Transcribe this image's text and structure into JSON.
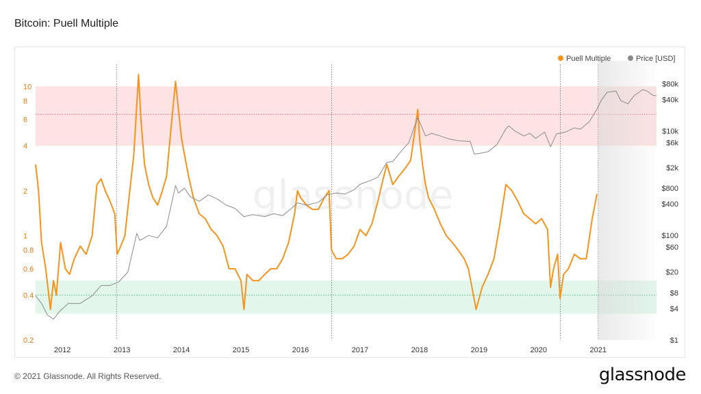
{
  "page": {
    "title": "Bitcoin: Puell Multiple"
  },
  "footer": {
    "copyright": "© 2021 Glassnode. All Rights Reserved.",
    "brand": "glassnode"
  },
  "watermark": "glassnode",
  "colors": {
    "puell": "#f7931a",
    "price": "#8a8a8a",
    "top_band": "#fde3e3",
    "bottom_band": "#e2f6ec",
    "top_line": "#e0607a",
    "bottom_line": "#55b58a",
    "left_axis": "#e07a10"
  },
  "chart_data": {
    "type": "line",
    "title": "Bitcoin: Puell Multiple",
    "legend": {
      "placement": "top-right",
      "entries": [
        "Puell Multiple",
        "Price [USD]"
      ]
    },
    "x_ticks": [
      "2012",
      "2013",
      "2014",
      "2015",
      "2016",
      "2017",
      "2018",
      "2019",
      "2020",
      "2021"
    ],
    "x_range": [
      2011.55,
      2021.98
    ],
    "y_left": {
      "scale": "log",
      "range": [
        0.2,
        12
      ],
      "ticks": [
        "0.2",
        "0.4",
        "0.6",
        "0.8",
        "1",
        "2",
        "4",
        "6",
        "8",
        "10"
      ]
    },
    "y_right": {
      "scale": "log",
      "range": [
        1,
        120000
      ],
      "ticks": [
        "$1",
        "$4",
        "$8",
        "$20",
        "$60",
        "$100",
        "$400",
        "$800",
        "$2k",
        "$6k",
        "$10k",
        "$40k",
        "$80k"
      ]
    },
    "bands": [
      {
        "name": "top",
        "from": 4,
        "to": 10,
        "line": 6.5
      },
      {
        "name": "bottom",
        "from": 0.3,
        "to": 0.5,
        "line": 0.4
      }
    ],
    "halvings": [
      "2012-11-28",
      "2016-07-09",
      "2020-05-11"
    ],
    "projection_start": 2021.0,
    "series": [
      {
        "name": "Puell Multiple",
        "axis": "left",
        "points": [
          [
            2011.55,
            3.0
          ],
          [
            2011.6,
            2.0
          ],
          [
            2011.65,
            0.9
          ],
          [
            2011.72,
            0.6
          ],
          [
            2011.8,
            0.32
          ],
          [
            2011.85,
            0.5
          ],
          [
            2011.9,
            0.4
          ],
          [
            2011.97,
            0.9
          ],
          [
            2012.05,
            0.6
          ],
          [
            2012.12,
            0.55
          ],
          [
            2012.2,
            0.7
          ],
          [
            2012.3,
            0.85
          ],
          [
            2012.4,
            0.75
          ],
          [
            2012.5,
            1.0
          ],
          [
            2012.58,
            2.2
          ],
          [
            2012.65,
            2.4
          ],
          [
            2012.72,
            2.0
          ],
          [
            2012.8,
            1.7
          ],
          [
            2012.88,
            1.4
          ],
          [
            2012.92,
            0.75
          ],
          [
            2012.98,
            0.85
          ],
          [
            2013.05,
            1.0
          ],
          [
            2013.12,
            1.8
          ],
          [
            2013.2,
            3.5
          ],
          [
            2013.28,
            12.0
          ],
          [
            2013.32,
            6.0
          ],
          [
            2013.38,
            3.0
          ],
          [
            2013.45,
            2.2
          ],
          [
            2013.52,
            1.8
          ],
          [
            2013.6,
            1.6
          ],
          [
            2013.68,
            2.0
          ],
          [
            2013.75,
            2.5
          ],
          [
            2013.82,
            5.0
          ],
          [
            2013.9,
            10.8
          ],
          [
            2013.95,
            7.0
          ],
          [
            2014.0,
            4.5
          ],
          [
            2014.05,
            3.5
          ],
          [
            2014.12,
            2.5
          ],
          [
            2014.2,
            1.8
          ],
          [
            2014.3,
            1.4
          ],
          [
            2014.4,
            1.3
          ],
          [
            2014.5,
            1.1
          ],
          [
            2014.6,
            1.0
          ],
          [
            2014.7,
            0.85
          ],
          [
            2014.8,
            0.6
          ],
          [
            2014.9,
            0.6
          ],
          [
            2015.0,
            0.5
          ],
          [
            2015.05,
            0.32
          ],
          [
            2015.1,
            0.55
          ],
          [
            2015.2,
            0.5
          ],
          [
            2015.3,
            0.5
          ],
          [
            2015.4,
            0.55
          ],
          [
            2015.5,
            0.6
          ],
          [
            2015.6,
            0.6
          ],
          [
            2015.7,
            0.7
          ],
          [
            2015.8,
            0.9
          ],
          [
            2015.9,
            1.4
          ],
          [
            2015.95,
            2.0
          ],
          [
            2016.0,
            1.8
          ],
          [
            2016.1,
            1.6
          ],
          [
            2016.2,
            1.5
          ],
          [
            2016.3,
            1.5
          ],
          [
            2016.4,
            1.8
          ],
          [
            2016.48,
            2.0
          ],
          [
            2016.52,
            0.8
          ],
          [
            2016.6,
            0.7
          ],
          [
            2016.7,
            0.7
          ],
          [
            2016.8,
            0.75
          ],
          [
            2016.9,
            0.85
          ],
          [
            2017.0,
            1.1
          ],
          [
            2017.1,
            1.0
          ],
          [
            2017.2,
            1.2
          ],
          [
            2017.3,
            1.7
          ],
          [
            2017.4,
            2.5
          ],
          [
            2017.45,
            3.0
          ],
          [
            2017.55,
            2.2
          ],
          [
            2017.65,
            2.5
          ],
          [
            2017.75,
            2.8
          ],
          [
            2017.85,
            3.2
          ],
          [
            2017.92,
            5.0
          ],
          [
            2017.97,
            7.0
          ],
          [
            2018.0,
            4.5
          ],
          [
            2018.05,
            3.0
          ],
          [
            2018.1,
            2.2
          ],
          [
            2018.15,
            1.8
          ],
          [
            2018.25,
            1.5
          ],
          [
            2018.35,
            1.2
          ],
          [
            2018.45,
            1.0
          ],
          [
            2018.55,
            0.9
          ],
          [
            2018.65,
            0.8
          ],
          [
            2018.75,
            0.7
          ],
          [
            2018.82,
            0.6
          ],
          [
            2018.88,
            0.45
          ],
          [
            2018.95,
            0.32
          ],
          [
            2019.05,
            0.45
          ],
          [
            2019.15,
            0.55
          ],
          [
            2019.25,
            0.7
          ],
          [
            2019.35,
            1.2
          ],
          [
            2019.45,
            2.2
          ],
          [
            2019.5,
            2.1
          ],
          [
            2019.55,
            2.0
          ],
          [
            2019.65,
            1.7
          ],
          [
            2019.75,
            1.4
          ],
          [
            2019.85,
            1.3
          ],
          [
            2019.95,
            1.2
          ],
          [
            2020.05,
            1.3
          ],
          [
            2020.15,
            1.1
          ],
          [
            2020.2,
            0.45
          ],
          [
            2020.25,
            0.6
          ],
          [
            2020.32,
            0.75
          ],
          [
            2020.36,
            0.38
          ],
          [
            2020.42,
            0.55
          ],
          [
            2020.5,
            0.6
          ],
          [
            2020.6,
            0.75
          ],
          [
            2020.7,
            0.7
          ],
          [
            2020.8,
            0.7
          ],
          [
            2020.9,
            1.3
          ],
          [
            2020.98,
            1.9
          ]
        ]
      },
      {
        "name": "Price [USD]",
        "axis": "right",
        "points": [
          [
            2011.55,
            7
          ],
          [
            2011.65,
            5
          ],
          [
            2011.75,
            3
          ],
          [
            2011.85,
            2.5
          ],
          [
            2011.95,
            3.5
          ],
          [
            2012.1,
            5
          ],
          [
            2012.3,
            5
          ],
          [
            2012.5,
            7
          ],
          [
            2012.65,
            11
          ],
          [
            2012.8,
            11
          ],
          [
            2012.95,
            13
          ],
          [
            2013.1,
            20
          ],
          [
            2013.25,
            110
          ],
          [
            2013.3,
            80
          ],
          [
            2013.45,
            100
          ],
          [
            2013.6,
            90
          ],
          [
            2013.75,
            150
          ],
          [
            2013.9,
            900
          ],
          [
            2013.95,
            650
          ],
          [
            2014.05,
            800
          ],
          [
            2014.15,
            550
          ],
          [
            2014.3,
            450
          ],
          [
            2014.45,
            600
          ],
          [
            2014.6,
            500
          ],
          [
            2014.75,
            380
          ],
          [
            2014.9,
            330
          ],
          [
            2015.05,
            230
          ],
          [
            2015.2,
            250
          ],
          [
            2015.4,
            230
          ],
          [
            2015.55,
            260
          ],
          [
            2015.7,
            240
          ],
          [
            2015.85,
            330
          ],
          [
            2015.95,
            420
          ],
          [
            2016.1,
            380
          ],
          [
            2016.3,
            430
          ],
          [
            2016.45,
            600
          ],
          [
            2016.6,
            650
          ],
          [
            2016.75,
            620
          ],
          [
            2016.9,
            750
          ],
          [
            2017.0,
            950
          ],
          [
            2017.15,
            1100
          ],
          [
            2017.3,
            1300
          ],
          [
            2017.45,
            2500
          ],
          [
            2017.55,
            2600
          ],
          [
            2017.7,
            4200
          ],
          [
            2017.82,
            6000
          ],
          [
            2017.9,
            11000
          ],
          [
            2017.97,
            18000
          ],
          [
            2018.05,
            11000
          ],
          [
            2018.1,
            8000
          ],
          [
            2018.2,
            9000
          ],
          [
            2018.35,
            8000
          ],
          [
            2018.5,
            7000
          ],
          [
            2018.65,
            6500
          ],
          [
            2018.85,
            6300
          ],
          [
            2018.92,
            3600
          ],
          [
            2019.0,
            3700
          ],
          [
            2019.15,
            4000
          ],
          [
            2019.3,
            5500
          ],
          [
            2019.45,
            11000
          ],
          [
            2019.5,
            12500
          ],
          [
            2019.6,
            10000
          ],
          [
            2019.75,
            8000
          ],
          [
            2019.85,
            9000
          ],
          [
            2019.95,
            7200
          ],
          [
            2020.1,
            9500
          ],
          [
            2020.2,
            5000
          ],
          [
            2020.3,
            8800
          ],
          [
            2020.45,
            9500
          ],
          [
            2020.6,
            11500
          ],
          [
            2020.7,
            10800
          ],
          [
            2020.85,
            15000
          ],
          [
            2020.97,
            25000
          ],
          [
            2021.05,
            38000
          ],
          [
            2021.15,
            55000
          ],
          [
            2021.3,
            58000
          ],
          [
            2021.38,
            38000
          ],
          [
            2021.5,
            33000
          ],
          [
            2021.6,
            47000
          ],
          [
            2021.75,
            62000
          ],
          [
            2021.82,
            58000
          ],
          [
            2021.92,
            48000
          ],
          [
            2021.98,
            47000
          ]
        ]
      }
    ]
  }
}
